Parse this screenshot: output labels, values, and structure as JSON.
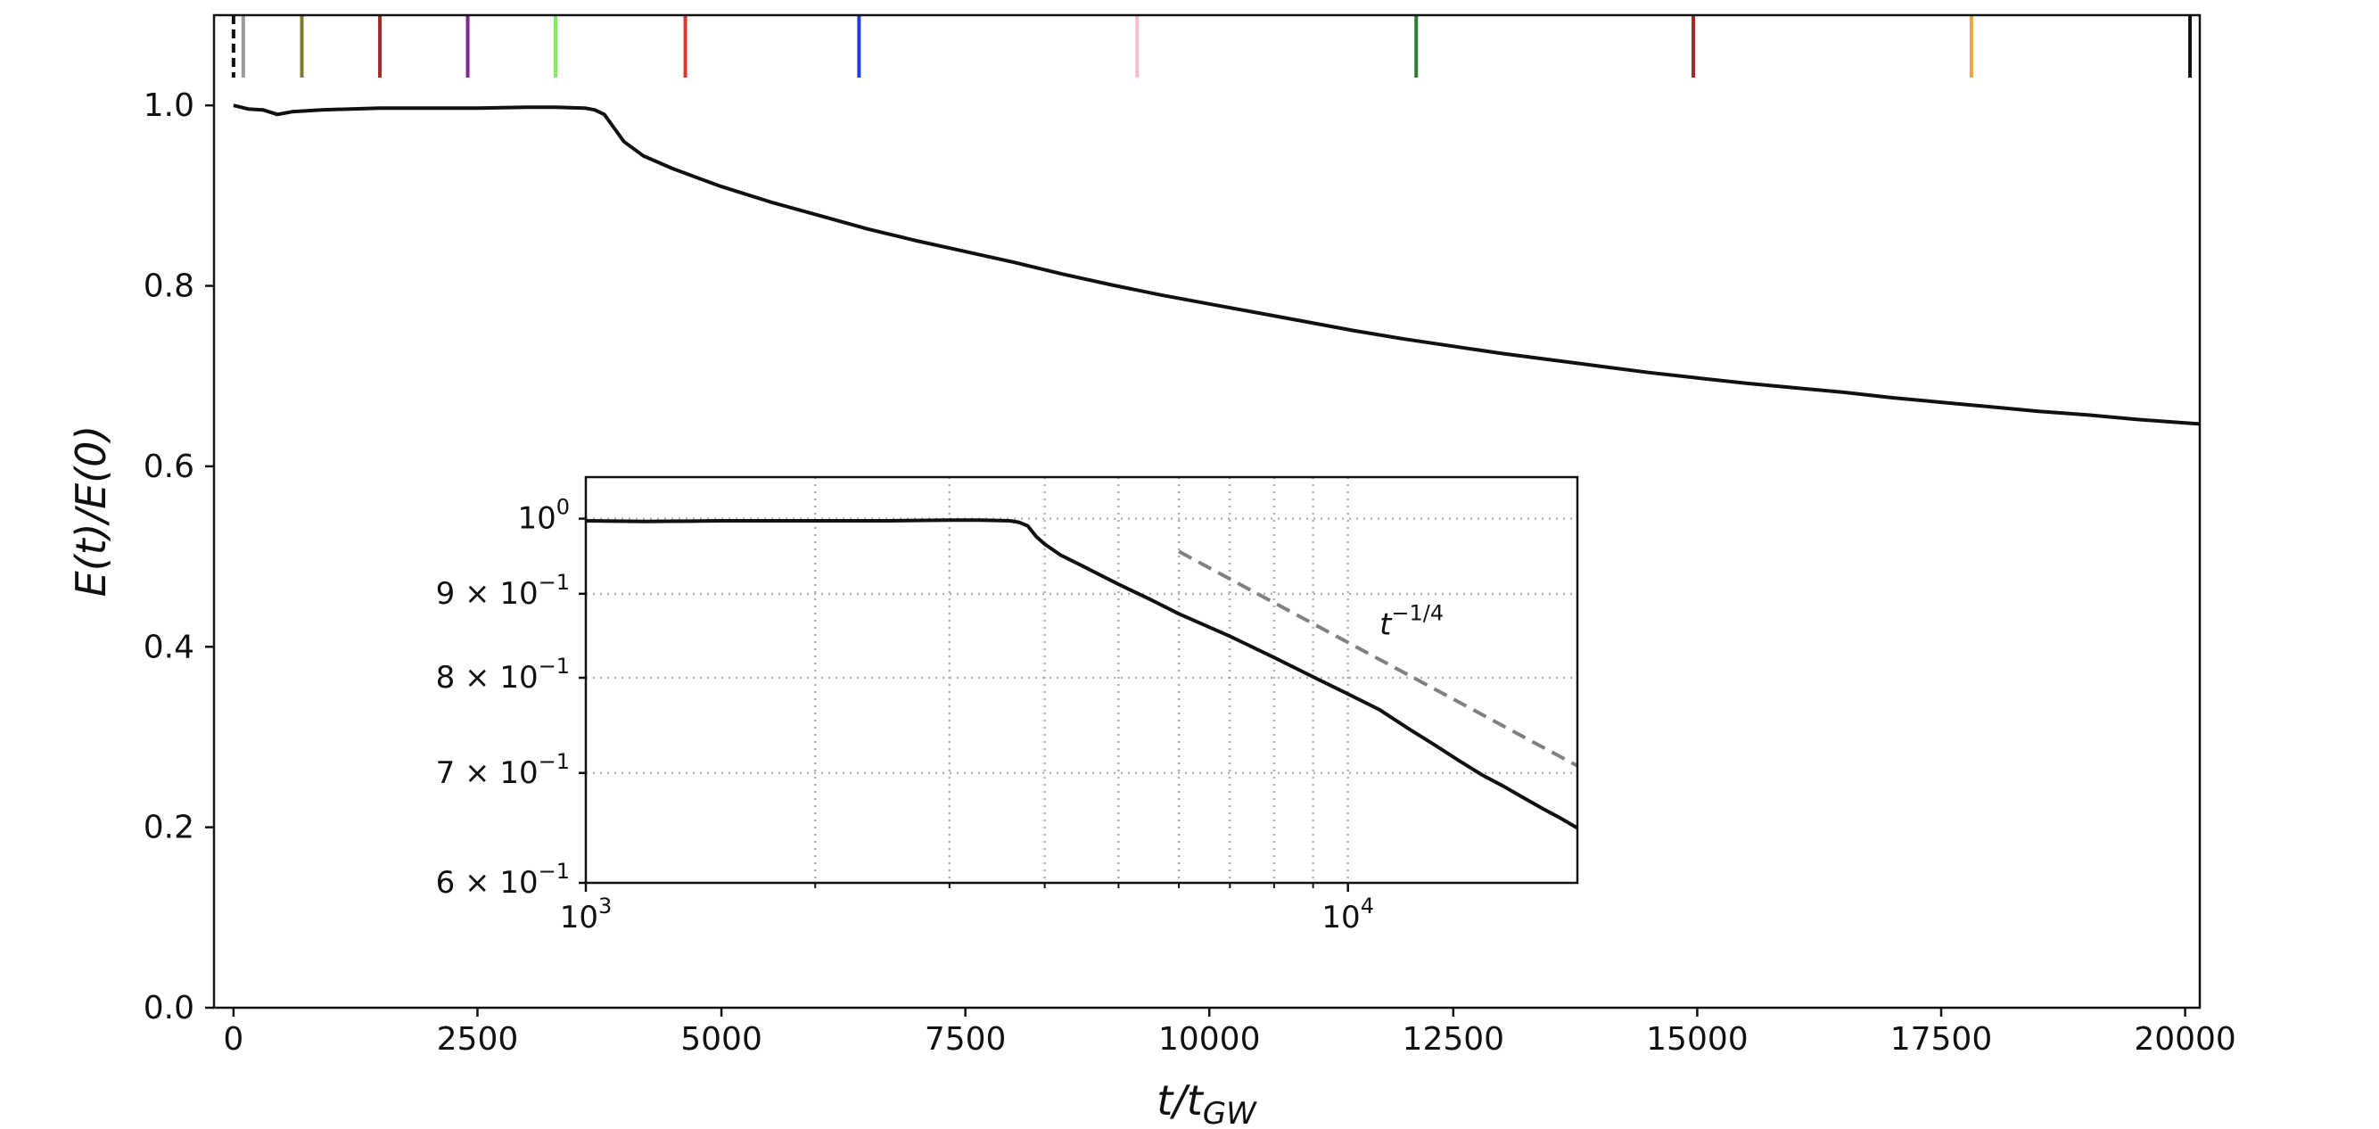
{
  "chart_data": [
    {
      "type": "line",
      "title": "",
      "xlabel": {
        "base": "t/t",
        "sub": "GW"
      },
      "ylabel": "E(t)/E(0)",
      "xlim": [
        -200,
        20150
      ],
      "ylim": [
        0.0,
        1.1
      ],
      "xticks": [
        0,
        2500,
        5000,
        7500,
        10000,
        12500,
        15000,
        17500,
        20000
      ],
      "xtick_labels": [
        "0",
        "2500",
        "5000",
        "7500",
        "10000",
        "12500",
        "15000",
        "17500",
        "20000"
      ],
      "yticks": [
        0.0,
        0.2,
        0.4,
        0.6,
        0.8,
        1.0
      ],
      "ytick_labels": [
        "0.0",
        "0.2",
        "0.4",
        "0.6",
        "0.8",
        "1.0"
      ],
      "grid": false,
      "series": [
        {
          "color": "#111111",
          "x": [
            0,
            150,
            300,
            450,
            600,
            900,
            1200,
            1500,
            2000,
            2500,
            3000,
            3300,
            3600,
            3700,
            3800,
            3900,
            4000,
            4200,
            4500,
            4800,
            5000,
            5500,
            6000,
            6500,
            7000,
            7500,
            8000,
            8500,
            9000,
            9500,
            10000,
            10500,
            11000,
            11500,
            12000,
            12500,
            13000,
            13500,
            14000,
            14500,
            15000,
            15500,
            16000,
            16500,
            17000,
            17500,
            18000,
            18500,
            19000,
            19500,
            20000,
            20150
          ],
          "y": [
            1.0,
            0.996,
            0.995,
            0.99,
            0.993,
            0.995,
            0.996,
            0.997,
            0.997,
            0.997,
            0.998,
            0.998,
            0.997,
            0.995,
            0.99,
            0.975,
            0.96,
            0.944,
            0.93,
            0.918,
            0.91,
            0.893,
            0.878,
            0.863,
            0.85,
            0.838,
            0.826,
            0.813,
            0.801,
            0.79,
            0.78,
            0.77,
            0.76,
            0.75,
            0.741,
            0.733,
            0.725,
            0.718,
            0.711,
            0.704,
            0.698,
            0.692,
            0.687,
            0.682,
            0.676,
            0.671,
            0.666,
            0.661,
            0.657,
            0.652,
            0.648,
            0.647
          ]
        }
      ],
      "markers": [
        {
          "x": 0,
          "color": "#111111",
          "style": "dashed"
        },
        {
          "x": 100,
          "color": "#9a9a9a",
          "style": "solid"
        },
        {
          "x": 700,
          "color": "#807a2e",
          "style": "solid"
        },
        {
          "x": 1500,
          "color": "#a52a2a",
          "style": "solid"
        },
        {
          "x": 2400,
          "color": "#7b2a8f",
          "style": "solid"
        },
        {
          "x": 3300,
          "color": "#7cf05a",
          "style": "solid"
        },
        {
          "x": 4630,
          "color": "#d63a2e",
          "style": "solid"
        },
        {
          "x": 6410,
          "color": "#1f3fe0",
          "style": "solid"
        },
        {
          "x": 9260,
          "color": "#f5c0cb",
          "style": "solid"
        },
        {
          "x": 12120,
          "color": "#2e7d32",
          "style": "solid"
        },
        {
          "x": 14960,
          "color": "#a52a2a",
          "style": "solid"
        },
        {
          "x": 17810,
          "color": "#f0a53c",
          "style": "solid"
        },
        {
          "x": 20050,
          "color": "#111111",
          "style": "solid"
        }
      ]
    },
    {
      "type": "line",
      "title": "",
      "xscale": "log",
      "yscale": "log",
      "xlim": [
        1000,
        20000
      ],
      "ylim": [
        0.6,
        1.06
      ],
      "xticks_major": [
        1000,
        10000
      ],
      "xtick_labels": [
        {
          "base": "10",
          "exp": "3"
        },
        {
          "base": "10",
          "exp": "4"
        }
      ],
      "xticks_minor": [
        2000,
        3000,
        4000,
        5000,
        6000,
        7000,
        8000,
        9000
      ],
      "yticks": [
        1.0,
        0.9,
        0.8,
        0.7,
        0.6
      ],
      "ytick_labels": [
        {
          "base": "10",
          "exp": "0"
        },
        {
          "base": "9 × 10",
          "exp": "−1"
        },
        {
          "base": "8 × 10",
          "exp": "−1"
        },
        {
          "base": "7 × 10",
          "exp": "−1"
        },
        {
          "base": "6 × 10",
          "exp": "−1"
        }
      ],
      "grid": true,
      "series": [
        {
          "color": "#111111",
          "x": [
            1000,
            1200,
            1500,
            2000,
            2500,
            3000,
            3300,
            3600,
            3700,
            3800,
            3900,
            4000,
            4200,
            4500,
            5000,
            5500,
            6000,
            7000,
            8000,
            9000,
            10000,
            11000,
            12000,
            13000,
            14000,
            15000,
            16000,
            17000,
            18000,
            19000,
            20000
          ],
          "y": [
            0.997,
            0.996,
            0.997,
            0.997,
            0.997,
            0.998,
            0.998,
            0.997,
            0.995,
            0.99,
            0.975,
            0.965,
            0.95,
            0.935,
            0.912,
            0.893,
            0.875,
            0.848,
            0.823,
            0.801,
            0.782,
            0.765,
            0.745,
            0.728,
            0.712,
            0.698,
            0.687,
            0.676,
            0.666,
            0.657,
            0.648
          ]
        },
        {
          "name": "t^{-1/4}",
          "color": "#808080",
          "style": "dashed",
          "x": [
            6000,
            20000
          ],
          "y": [
            0.955,
            0.707
          ]
        }
      ],
      "annotation": {
        "base": "t",
        "exp": "−1/4",
        "x": 11000,
        "y": 0.85
      }
    }
  ]
}
